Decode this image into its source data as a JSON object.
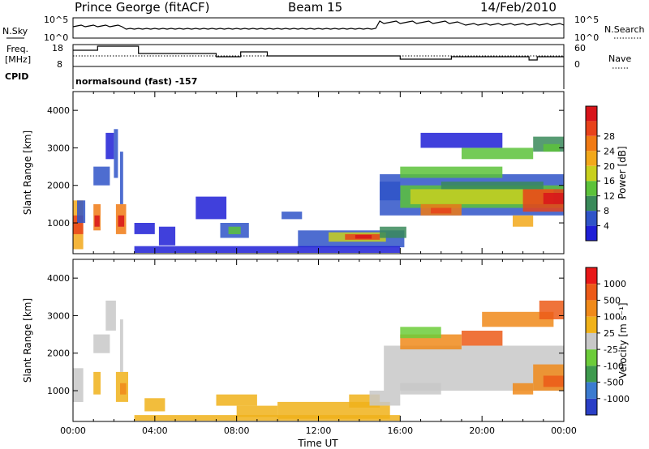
{
  "header": {
    "radar": "Prince George (fitACF)",
    "beam": "Beam 15",
    "date": "14/Feb/2010"
  },
  "top_labels": {
    "nsky": "N.Sky",
    "nsky_ticks": [
      "10^5",
      "10^0"
    ],
    "nsearch": "N.Search",
    "nsearch_ticks": [
      "10^5",
      "10^0"
    ],
    "freq_line1": "Freq.",
    "freq_line2": "[MHz]",
    "freq_ticks": [
      "18",
      "8"
    ],
    "nave": "Nave",
    "nave_ticks": [
      "60",
      "0"
    ],
    "cpid": "CPID",
    "cpid_text": "normalsound (fast) -157"
  },
  "colors": {
    "power": [
      "#1f1fd6",
      "#2f54c8",
      "#3a8a5a",
      "#5cc23a",
      "#c8d01e",
      "#f2a81a",
      "#f07a14",
      "#e8421a",
      "#d8141a"
    ],
    "velocity": [
      "#2a3fc6",
      "#3b7bd0",
      "#3e9a4e",
      "#6ccc3a",
      "#c8c8c8",
      "#f0b21a",
      "#f08a1a",
      "#ec5a18",
      "#e81818"
    ]
  },
  "chart_data": [
    {
      "type": "heatmap",
      "name": "power",
      "xlabel": "",
      "ylabel": "Slant Range [km]",
      "xlim": [
        0,
        24
      ],
      "ylim": [
        180,
        4500
      ],
      "x_ticks": [
        "00:00",
        "04:00",
        "08:00",
        "12:00",
        "16:00",
        "20:00",
        "00:00"
      ],
      "y_ticks": [
        1000,
        2000,
        3000,
        4000
      ],
      "colorbar": {
        "label": "Power [dB]",
        "ticks": [
          "4",
          "8",
          "12",
          "16",
          "20",
          "24",
          "28"
        ]
      },
      "regions": [
        {
          "t0": 0.0,
          "t1": 0.5,
          "r0": 300,
          "r1": 1600,
          "level": 5
        },
        {
          "t0": 0.0,
          "t1": 0.5,
          "r0": 700,
          "r1": 1200,
          "level": 7
        },
        {
          "t0": 1.0,
          "t1": 1.35,
          "r0": 800,
          "r1": 1500,
          "level": 6
        },
        {
          "t0": 1.05,
          "t1": 1.3,
          "r0": 900,
          "r1": 1200,
          "level": 8
        },
        {
          "t0": 2.1,
          "t1": 2.6,
          "r0": 700,
          "r1": 1500,
          "level": 6
        },
        {
          "t0": 2.2,
          "t1": 2.5,
          "r0": 900,
          "r1": 1200,
          "level": 8
        },
        {
          "t0": 0.2,
          "t1": 0.6,
          "r0": 1000,
          "r1": 1600,
          "level": 1
        },
        {
          "t0": 1.0,
          "t1": 1.8,
          "r0": 2000,
          "r1": 2500,
          "level": 1
        },
        {
          "t0": 1.6,
          "t1": 2.0,
          "r0": 2700,
          "r1": 3400,
          "level": 0
        },
        {
          "t0": 2.0,
          "t1": 2.2,
          "r0": 2200,
          "r1": 3500,
          "level": 1
        },
        {
          "t0": 2.3,
          "t1": 2.45,
          "r0": 1500,
          "r1": 2900,
          "level": 1
        },
        {
          "t0": 3.0,
          "t1": 4.0,
          "r0": 700,
          "r1": 1000,
          "level": 0
        },
        {
          "t0": 4.2,
          "t1": 5.0,
          "r0": 400,
          "r1": 900,
          "level": 0
        },
        {
          "t0": 6.0,
          "t1": 7.5,
          "r0": 1100,
          "r1": 1700,
          "level": 0
        },
        {
          "t0": 7.2,
          "t1": 8.6,
          "r0": 600,
          "r1": 1000,
          "level": 1
        },
        {
          "t0": 7.6,
          "t1": 8.2,
          "r0": 700,
          "r1": 900,
          "level": 3
        },
        {
          "t0": 10.2,
          "t1": 11.2,
          "r0": 1100,
          "r1": 1300,
          "level": 1
        },
        {
          "t0": 11.0,
          "t1": 16.2,
          "r0": 350,
          "r1": 800,
          "level": 1
        },
        {
          "t0": 12.5,
          "t1": 15.3,
          "r0": 500,
          "r1": 750,
          "level": 4
        },
        {
          "t0": 13.3,
          "t1": 15.0,
          "r0": 550,
          "r1": 700,
          "level": 7
        },
        {
          "t0": 13.8,
          "t1": 14.6,
          "r0": 580,
          "r1": 680,
          "level": 8
        },
        {
          "t0": 15.0,
          "t1": 16.3,
          "r0": 600,
          "r1": 900,
          "level": 2
        },
        {
          "t0": 3.0,
          "t1": 16.0,
          "r0": 200,
          "r1": 380,
          "level": 0
        },
        {
          "t0": 15.0,
          "t1": 24.0,
          "r0": 1200,
          "r1": 2300,
          "level": 1
        },
        {
          "t0": 16.0,
          "t1": 24.0,
          "r0": 1400,
          "r1": 2000,
          "level": 3
        },
        {
          "t0": 16.5,
          "t1": 23.5,
          "r0": 1500,
          "r1": 1900,
          "level": 4
        },
        {
          "t0": 17.0,
          "t1": 19.0,
          "r0": 1200,
          "r1": 1500,
          "level": 6
        },
        {
          "t0": 17.5,
          "t1": 18.5,
          "r0": 1250,
          "r1": 1400,
          "level": 7
        },
        {
          "t0": 22.0,
          "t1": 24.0,
          "r0": 1300,
          "r1": 1900,
          "level": 7
        },
        {
          "t0": 23.0,
          "t1": 24.0,
          "r0": 1500,
          "r1": 1800,
          "level": 8
        },
        {
          "t0": 21.5,
          "t1": 22.5,
          "r0": 900,
          "r1": 1200,
          "level": 5
        },
        {
          "t0": 16.0,
          "t1": 21.0,
          "r0": 2200,
          "r1": 2500,
          "level": 3
        },
        {
          "t0": 19.0,
          "t1": 22.5,
          "r0": 2700,
          "r1": 3000,
          "level": 3
        },
        {
          "t0": 18.0,
          "t1": 23.0,
          "r0": 1900,
          "r1": 2100,
          "level": 2
        },
        {
          "t0": 17.0,
          "t1": 21.0,
          "r0": 3000,
          "r1": 3400,
          "level": 0
        },
        {
          "t0": 22.5,
          "t1": 24.0,
          "r0": 2900,
          "r1": 3300,
          "level": 2
        },
        {
          "t0": 23.0,
          "t1": 23.8,
          "r0": 2900,
          "r1": 3100,
          "level": 3
        },
        {
          "t0": 15.0,
          "t1": 16.0,
          "r0": 1600,
          "r1": 2100,
          "level": 1
        }
      ]
    },
    {
      "type": "heatmap",
      "name": "velocity",
      "xlabel": "Time UT",
      "ylabel": "Slant Range [km]",
      "xlim": [
        0,
        24
      ],
      "ylim": [
        180,
        4500
      ],
      "x_ticks": [
        "00:00",
        "04:00",
        "08:00",
        "12:00",
        "16:00",
        "20:00",
        "00:00"
      ],
      "y_ticks": [
        1000,
        2000,
        3000,
        4000
      ],
      "colorbar": {
        "label": "Velocity [m s⁻¹]",
        "ticks": [
          "1000",
          "500",
          "100",
          "25",
          "-25",
          "-100",
          "-500",
          "-1000"
        ]
      },
      "regions": [
        {
          "t0": 0.0,
          "t1": 0.5,
          "r0": 700,
          "r1": 1600,
          "level": 4
        },
        {
          "t0": 1.0,
          "t1": 1.35,
          "r0": 900,
          "r1": 1500,
          "level": 5
        },
        {
          "t0": 2.1,
          "t1": 2.7,
          "r0": 700,
          "r1": 1500,
          "level": 5
        },
        {
          "t0": 2.3,
          "t1": 2.6,
          "r0": 900,
          "r1": 1200,
          "level": 6
        },
        {
          "t0": 1.0,
          "t1": 1.8,
          "r0": 2000,
          "r1": 2500,
          "level": 4
        },
        {
          "t0": 1.6,
          "t1": 2.1,
          "r0": 2600,
          "r1": 3400,
          "level": 4
        },
        {
          "t0": 2.3,
          "t1": 2.45,
          "r0": 1500,
          "r1": 2900,
          "level": 4
        },
        {
          "t0": 3.5,
          "t1": 4.5,
          "r0": 450,
          "r1": 800,
          "level": 5
        },
        {
          "t0": 7.0,
          "t1": 9.0,
          "r0": 600,
          "r1": 900,
          "level": 5
        },
        {
          "t0": 8.0,
          "t1": 10.0,
          "r0": 300,
          "r1": 600,
          "level": 5
        },
        {
          "t0": 10.0,
          "t1": 15.5,
          "r0": 250,
          "r1": 700,
          "level": 5
        },
        {
          "t0": 13.5,
          "t1": 15.0,
          "r0": 550,
          "r1": 900,
          "level": 5
        },
        {
          "t0": 14.5,
          "t1": 16.0,
          "r0": 600,
          "r1": 1000,
          "level": 4
        },
        {
          "t0": 3.0,
          "t1": 16.0,
          "r0": 200,
          "r1": 350,
          "level": 5
        },
        {
          "t0": 15.2,
          "t1": 24.0,
          "r0": 1000,
          "r1": 2200,
          "level": 4
        },
        {
          "t0": 16.0,
          "t1": 18.0,
          "r0": 900,
          "r1": 1200,
          "level": 4
        },
        {
          "t0": 21.5,
          "t1": 22.5,
          "r0": 900,
          "r1": 1200,
          "level": 6
        },
        {
          "t0": 22.5,
          "t1": 24.0,
          "r0": 1000,
          "r1": 1700,
          "level": 6
        },
        {
          "t0": 23.0,
          "t1": 24.0,
          "r0": 1100,
          "r1": 1400,
          "level": 7
        },
        {
          "t0": 16.0,
          "t1": 19.0,
          "r0": 2100,
          "r1": 2500,
          "level": 6
        },
        {
          "t0": 19.0,
          "t1": 21.0,
          "r0": 2200,
          "r1": 2600,
          "level": 7
        },
        {
          "t0": 20.0,
          "t1": 23.5,
          "r0": 2700,
          "r1": 3100,
          "level": 6
        },
        {
          "t0": 22.8,
          "t1": 24.0,
          "r0": 2900,
          "r1": 3400,
          "level": 7
        },
        {
          "t0": 16.0,
          "t1": 18.0,
          "r0": 2400,
          "r1": 2700,
          "level": 3
        }
      ]
    }
  ]
}
